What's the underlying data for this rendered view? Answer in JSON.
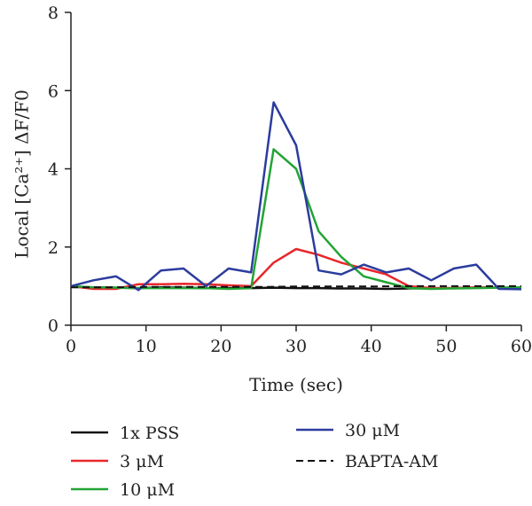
{
  "chart_data": {
    "type": "line",
    "xlabel": "Time (sec)",
    "ylabel": "Local [Ca²⁺] ΔF/F0",
    "xlim": [
      0,
      60
    ],
    "ylim": [
      0,
      8
    ],
    "xticks": [
      0,
      10,
      20,
      30,
      40,
      50,
      60
    ],
    "yticks": [
      0,
      2,
      4,
      6,
      8
    ],
    "grid": false,
    "legend_position": "bottom",
    "series": [
      {
        "name": "1x PSS",
        "color": "#111111",
        "dash": false,
        "x": [
          0,
          3,
          6,
          9,
          12,
          15,
          18,
          21,
          24,
          27,
          30,
          33,
          36,
          39,
          42,
          45,
          48,
          51,
          54,
          57,
          60
        ],
        "y": [
          0.98,
          0.97,
          0.96,
          0.95,
          0.97,
          0.96,
          0.95,
          0.95,
          0.95,
          0.96,
          0.95,
          0.95,
          0.94,
          0.94,
          0.93,
          0.94,
          0.95,
          0.95,
          0.96,
          0.96,
          0.96
        ]
      },
      {
        "name": "3 μM",
        "color": "#e8272b",
        "dash": false,
        "x": [
          0,
          3,
          6,
          9,
          12,
          15,
          18,
          21,
          24,
          27,
          30,
          33,
          36,
          39,
          42,
          45,
          48,
          51,
          54,
          57,
          60
        ],
        "y": [
          1.0,
          0.93,
          0.93,
          1.05,
          1.05,
          1.06,
          1.05,
          1.02,
          1.0,
          1.6,
          1.95,
          1.8,
          1.6,
          1.45,
          1.3,
          1.0,
          0.95,
          0.95,
          0.97,
          0.96,
          0.95
        ]
      },
      {
        "name": "10 μM",
        "color": "#22a435",
        "dash": false,
        "x": [
          0,
          3,
          6,
          9,
          12,
          15,
          18,
          21,
          24,
          27,
          30,
          33,
          36,
          39,
          42,
          45,
          48,
          51,
          54,
          57,
          60
        ],
        "y": [
          1.0,
          0.97,
          0.96,
          0.95,
          0.95,
          0.95,
          0.95,
          0.93,
          0.95,
          4.5,
          4.0,
          2.4,
          1.75,
          1.25,
          1.1,
          0.95,
          0.93,
          0.94,
          0.95,
          0.96,
          0.97
        ]
      },
      {
        "name": "30 μM",
        "color": "#2c3c9e",
        "dash": false,
        "x": [
          0,
          3,
          6,
          9,
          12,
          15,
          18,
          21,
          24,
          27,
          30,
          33,
          36,
          39,
          42,
          45,
          48,
          51,
          54,
          57,
          60
        ],
        "y": [
          1.0,
          1.15,
          1.25,
          0.9,
          1.4,
          1.45,
          1.0,
          1.45,
          1.35,
          5.7,
          4.6,
          1.4,
          1.3,
          1.55,
          1.35,
          1.45,
          1.15,
          1.45,
          1.55,
          0.93,
          0.92
        ]
      },
      {
        "name": "BAPTA-AM",
        "color": "#111111",
        "dash": true,
        "x": [
          0,
          5,
          10,
          15,
          20,
          25,
          30,
          35,
          40,
          45,
          50,
          55,
          60
        ],
        "y": [
          0.97,
          0.97,
          0.98,
          0.98,
          0.98,
          0.98,
          0.99,
          0.99,
          0.99,
          1.0,
          1.0,
          1.0,
          1.0
        ]
      }
    ]
  }
}
